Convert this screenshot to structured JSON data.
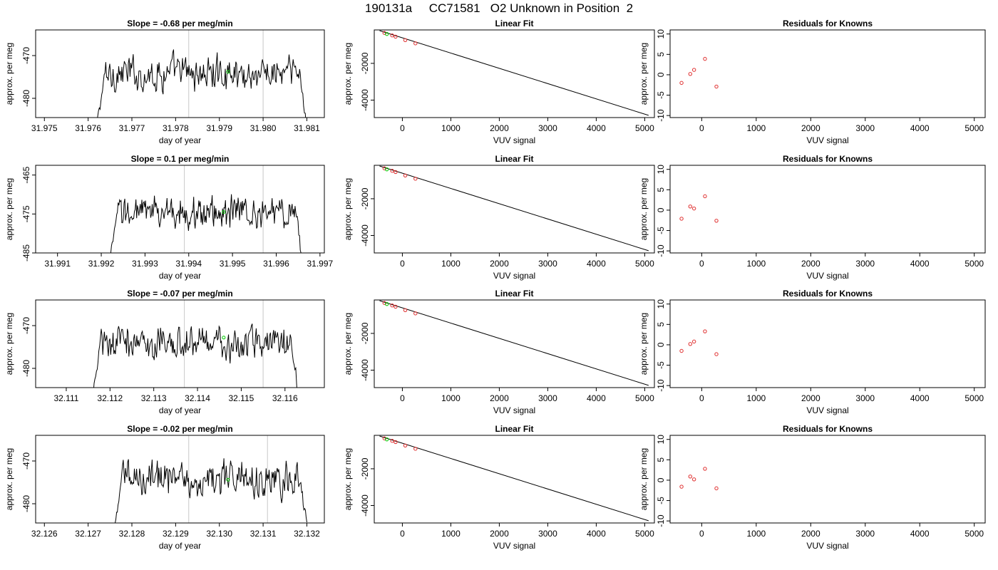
{
  "main_title": "190131a     CC71581   O2 Unknown in Position  2",
  "chart_data": [
    {
      "type": "line",
      "row": 0,
      "col": 0,
      "title": "Slope =  -0.68  per meg/min",
      "xlabel": "day of year",
      "ylabel": "approx. per meg",
      "xlim": [
        31.9748,
        31.9814
      ],
      "ylim": [
        -484.5,
        -464.0
      ],
      "xticks": [
        31.975,
        31.976,
        31.977,
        31.978,
        31.979,
        31.98,
        31.981
      ],
      "xtick_labels": [
        "31.975",
        "31.976",
        "31.977",
        "31.978",
        "31.979",
        "31.980",
        "31.981"
      ],
      "yticks": [
        -470,
        -480
      ],
      "ytick_labels": [
        "-470",
        "-480"
      ],
      "vlines": [
        31.9783,
        31.98
      ],
      "signal_start": 31.9762,
      "signal_end": 31.981,
      "signal_mean": -474.2,
      "signal_edge": -486,
      "marker": [
        31.9792,
        -473.8
      ]
    },
    {
      "type": "scatter",
      "row": 0,
      "col": 1,
      "title": "Linear Fit",
      "xlabel": "VUV signal",
      "ylabel": "approx. per meg",
      "xlim": [
        -580,
        5200
      ],
      "ylim": [
        -4950,
        -180
      ],
      "xticks": [
        0,
        1000,
        2000,
        3000,
        4000,
        5000
      ],
      "xtick_labels": [
        "0",
        "1000",
        "2000",
        "3000",
        "4000",
        "5000"
      ],
      "yticks": [
        -2000,
        -4000
      ],
      "ytick_labels": [
        "-2000",
        "-4000"
      ],
      "fit_line": {
        "x": [
          -470,
          5080
        ],
        "y": [
          -220,
          -4830
        ]
      },
      "points": {
        "x": [
          -370,
          -210,
          -140,
          60,
          270
        ],
        "y": [
          -345,
          -480,
          -545,
          -735,
          -910
        ]
      },
      "unknown": [
        -320,
        -400
      ]
    },
    {
      "type": "scatter",
      "row": 0,
      "col": 2,
      "title": "Residuals for Knowns",
      "xlabel": "VUV signal",
      "ylabel": "approx. per meg",
      "xlim": [
        -580,
        5200
      ],
      "ylim": [
        -10.5,
        11
      ],
      "xticks": [
        0,
        1000,
        2000,
        3000,
        4000,
        5000
      ],
      "xtick_labels": [
        "0",
        "1000",
        "2000",
        "3000",
        "4000",
        "5000"
      ],
      "yticks": [
        10,
        5,
        0,
        -5,
        -10
      ],
      "ytick_labels": [
        "10",
        "5",
        "0",
        "-5",
        "-10"
      ],
      "points": {
        "x": [
          -370,
          -210,
          -140,
          60,
          270
        ],
        "y": [
          -2.0,
          0.2,
          1.2,
          3.9,
          -2.9
        ]
      }
    },
    {
      "type": "line",
      "row": 1,
      "col": 0,
      "title": "Slope =  0.1  per meg/min",
      "xlabel": "day of year",
      "ylabel": "approx. per meg",
      "xlim": [
        31.9905,
        31.9971
      ],
      "ylim": [
        -485,
        -462.5
      ],
      "xticks": [
        31.991,
        31.992,
        31.993,
        31.994,
        31.995,
        31.996,
        31.997
      ],
      "xtick_labels": [
        "31.991",
        "31.992",
        "31.993",
        "31.994",
        "31.995",
        "31.996",
        "31.997"
      ],
      "yticks": [
        -465,
        -475,
        -485
      ],
      "ytick_labels": [
        "-465",
        "-475",
        "-485"
      ],
      "vlines": [
        31.9939,
        31.9957
      ],
      "signal_start": 31.9922,
      "signal_end": 31.9966,
      "signal_mean": -474.5,
      "signal_edge": -487,
      "marker": [
        31.9948,
        -474.5
      ]
    },
    {
      "type": "scatter",
      "row": 1,
      "col": 1,
      "title": "Linear Fit",
      "xlabel": "VUV signal",
      "ylabel": "approx. per meg",
      "xlim": [
        -580,
        5200
      ],
      "ylim": [
        -4950,
        -180
      ],
      "xticks": [
        0,
        1000,
        2000,
        3000,
        4000,
        5000
      ],
      "xtick_labels": [
        "0",
        "1000",
        "2000",
        "3000",
        "4000",
        "5000"
      ],
      "yticks": [
        -2000,
        -4000
      ],
      "ytick_labels": [
        "-2000",
        "-4000"
      ],
      "fit_line": {
        "x": [
          -470,
          5080
        ],
        "y": [
          -220,
          -4830
        ]
      },
      "points": {
        "x": [
          -370,
          -210,
          -140,
          60,
          270
        ],
        "y": [
          -345,
          -480,
          -545,
          -735,
          -910
        ]
      },
      "unknown": [
        -320,
        -400
      ]
    },
    {
      "type": "scatter",
      "row": 1,
      "col": 2,
      "title": "Residuals for Knowns",
      "xlabel": "VUV signal",
      "ylabel": "approx. per meg",
      "xlim": [
        -580,
        5200
      ],
      "ylim": [
        -10.5,
        11
      ],
      "xticks": [
        0,
        1000,
        2000,
        3000,
        4000,
        5000
      ],
      "xtick_labels": [
        "0",
        "1000",
        "2000",
        "3000",
        "4000",
        "5000"
      ],
      "yticks": [
        10,
        5,
        0,
        -5,
        -10
      ],
      "ytick_labels": [
        "10",
        "5",
        "0",
        "-5",
        "-10"
      ],
      "points": {
        "x": [
          -370,
          -210,
          -140,
          60,
          270
        ],
        "y": [
          -2.1,
          0.9,
          0.4,
          3.4,
          -2.6
        ]
      }
    },
    {
      "type": "line",
      "row": 2,
      "col": 0,
      "title": "Slope =  -0.07  per meg/min",
      "xlabel": "day of year",
      "ylabel": "approx. per meg",
      "xlim": [
        32.1103,
        32.1169
      ],
      "ylim": [
        -484.5,
        -464.0
      ],
      "xticks": [
        32.111,
        32.112,
        32.113,
        32.114,
        32.115,
        32.116
      ],
      "xtick_labels": [
        "32.111",
        "32.112",
        "32.113",
        "32.114",
        "32.115",
        "32.116"
      ],
      "yticks": [
        -470,
        -480
      ],
      "ytick_labels": [
        "-470",
        "-480"
      ],
      "vlines": [
        32.1137,
        32.1155
      ],
      "signal_start": 32.1116,
      "signal_end": 32.1163,
      "signal_mean": -474.0,
      "signal_edge": -486,
      "marker": [
        32.1146,
        -472.8
      ]
    },
    {
      "type": "scatter",
      "row": 2,
      "col": 1,
      "title": "Linear Fit",
      "xlabel": "VUV signal",
      "ylabel": "approx. per meg",
      "xlim": [
        -580,
        5200
      ],
      "ylim": [
        -4950,
        -180
      ],
      "xticks": [
        0,
        1000,
        2000,
        3000,
        4000,
        5000
      ],
      "xtick_labels": [
        "0",
        "1000",
        "2000",
        "3000",
        "4000",
        "5000"
      ],
      "yticks": [
        -2000,
        -4000
      ],
      "ytick_labels": [
        "-2000",
        "-4000"
      ],
      "fit_line": {
        "x": [
          -470,
          5080
        ],
        "y": [
          -220,
          -4830
        ]
      },
      "points": {
        "x": [
          -370,
          -210,
          -140,
          60,
          270
        ],
        "y": [
          -345,
          -480,
          -545,
          -735,
          -910
        ]
      },
      "unknown": [
        -320,
        -400
      ]
    },
    {
      "type": "scatter",
      "row": 2,
      "col": 2,
      "title": "Residuals for Knowns",
      "xlabel": "VUV signal",
      "ylabel": "approx. per meg",
      "xlim": [
        -580,
        5200
      ],
      "ylim": [
        -10.5,
        11
      ],
      "xticks": [
        0,
        1000,
        2000,
        3000,
        4000,
        5000
      ],
      "xtick_labels": [
        "0",
        "1000",
        "2000",
        "3000",
        "4000",
        "5000"
      ],
      "yticks": [
        10,
        5,
        0,
        -5,
        -10
      ],
      "ytick_labels": [
        "10",
        "5",
        "0",
        "-5",
        "-10"
      ],
      "points": {
        "x": [
          -370,
          -210,
          -140,
          60,
          270
        ],
        "y": [
          -1.5,
          0.2,
          0.8,
          3.3,
          -2.3
        ]
      }
    },
    {
      "type": "line",
      "row": 3,
      "col": 0,
      "title": "Slope =  -0.02  per meg/min",
      "xlabel": "day of year",
      "ylabel": "approx. per meg",
      "xlim": [
        32.1258,
        32.1324
      ],
      "ylim": [
        -484.5,
        -464.0
      ],
      "xticks": [
        32.126,
        32.127,
        32.128,
        32.129,
        32.13,
        32.131,
        32.132
      ],
      "xtick_labels": [
        "32.126",
        "32.127",
        "32.128",
        "32.129",
        "32.130",
        "32.131",
        "32.132"
      ],
      "yticks": [
        -470,
        -480
      ],
      "ytick_labels": [
        "-470",
        "-480"
      ],
      "vlines": [
        32.1293,
        32.1311
      ],
      "signal_start": 32.1276,
      "signal_end": 32.132,
      "signal_mean": -474.0,
      "signal_edge": -486,
      "marker": [
        32.1302,
        -474.4
      ]
    },
    {
      "type": "scatter",
      "row": 3,
      "col": 1,
      "title": "Linear Fit",
      "xlabel": "VUV signal",
      "ylabel": "approx. per meg",
      "xlim": [
        -580,
        5200
      ],
      "ylim": [
        -4950,
        -180
      ],
      "xticks": [
        0,
        1000,
        2000,
        3000,
        4000,
        5000
      ],
      "xtick_labels": [
        "0",
        "1000",
        "2000",
        "3000",
        "4000",
        "5000"
      ],
      "yticks": [
        -2000,
        -4000
      ],
      "ytick_labels": [
        "-2000",
        "-4000"
      ],
      "fit_line": {
        "x": [
          -470,
          5080
        ],
        "y": [
          -220,
          -4830
        ]
      },
      "points": {
        "x": [
          -370,
          -210,
          -140,
          60,
          270
        ],
        "y": [
          -345,
          -480,
          -545,
          -735,
          -910
        ]
      },
      "unknown": [
        -320,
        -400
      ]
    },
    {
      "type": "scatter",
      "row": 3,
      "col": 2,
      "title": "Residuals for Knowns",
      "xlabel": "VUV signal",
      "ylabel": "approx. per meg",
      "xlim": [
        -580,
        5200
      ],
      "ylim": [
        -10.5,
        11
      ],
      "xticks": [
        0,
        1000,
        2000,
        3000,
        4000,
        5000
      ],
      "xtick_labels": [
        "0",
        "1000",
        "2000",
        "3000",
        "4000",
        "5000"
      ],
      "yticks": [
        10,
        5,
        0,
        -5,
        -10
      ],
      "ytick_labels": [
        "10",
        "5",
        "0",
        "-5",
        "-10"
      ],
      "points": {
        "x": [
          -370,
          -210,
          -140,
          60,
          270
        ],
        "y": [
          -1.6,
          0.9,
          0.2,
          2.8,
          -2.0
        ]
      }
    }
  ],
  "colors": {
    "axis": "#000000",
    "signal": "#000000",
    "vline": "#c8c8c8",
    "known_point": "#e03030",
    "unknown_point": "#00cc00",
    "fit_line": "#000000"
  }
}
